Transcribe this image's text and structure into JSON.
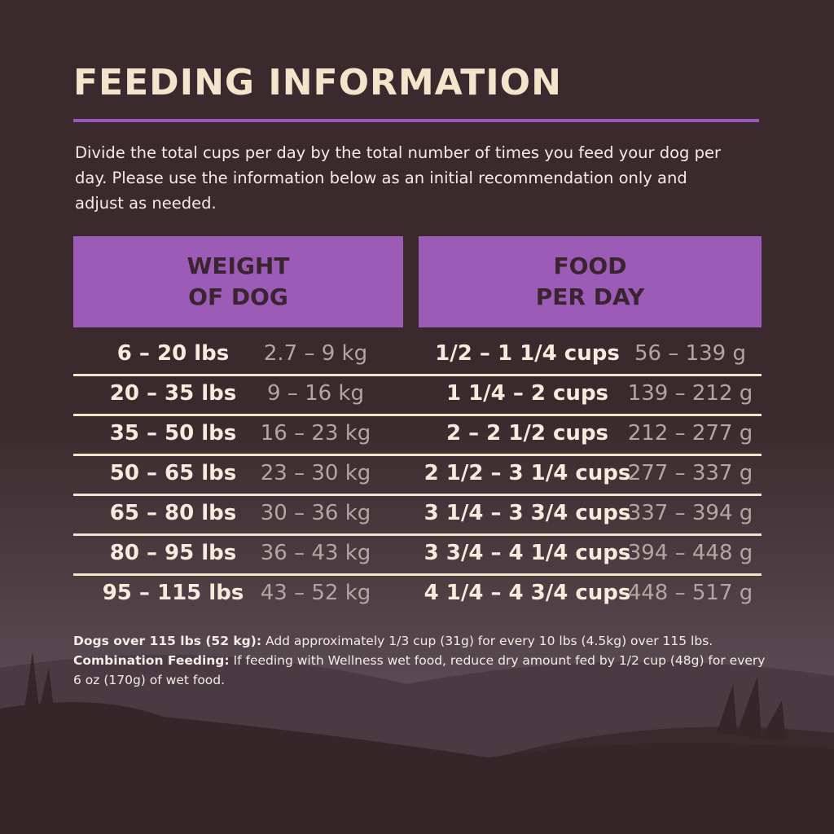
{
  "header": {
    "title": "FEEDING INFORMATION",
    "intro": "Divide the total cups per day by the total number of times you feed your dog per day. Please use the information below as an initial recommendation only and adjust as needed."
  },
  "table": {
    "headers": [
      [
        "WEIGHT",
        "OF DOG"
      ],
      [
        "FOOD",
        "PER DAY"
      ]
    ],
    "rows": [
      [
        "6 – 20 lbs",
        "2.7 – 9 kg",
        "1/2 – 1 1/4 cups",
        "56 – 139 g"
      ],
      [
        "20 – 35 lbs",
        "9 – 16 kg",
        "1 1/4 – 2 cups",
        "139 – 212 g"
      ],
      [
        "35 – 50 lbs",
        "16 – 23 kg",
        "2 – 2 1/2 cups",
        "212 – 277 g"
      ],
      [
        "50 – 65 lbs",
        "23 – 30 kg",
        "2 1/2 – 3 1/4 cups",
        "277 – 337 g"
      ],
      [
        "65 – 80 lbs",
        "30 – 36 kg",
        "3 1/4 – 3 3/4 cups",
        "337 – 394 g"
      ],
      [
        "80 – 95 lbs",
        "36 – 43 kg",
        "3 3/4 – 4 1/4 cups",
        "394 – 448 g"
      ],
      [
        "95 – 115 lbs",
        "43 – 52 kg",
        "4 1/4 – 4 3/4 cups",
        "448 – 517 g"
      ]
    ]
  },
  "footnote": [
    {
      "bold": "Dogs over 115 lbs (52 kg):",
      "text": " Add approximately 1/3 cup (31g) for every 10 lbs (4.5kg) over 115 lbs. "
    },
    {
      "bold": "Combination Feeding:",
      "text": " If feeding with Wellness wet food, reduce dry amount fed by 1/2 cup (48g) for every 6 oz (170g) of wet food."
    }
  ]
}
